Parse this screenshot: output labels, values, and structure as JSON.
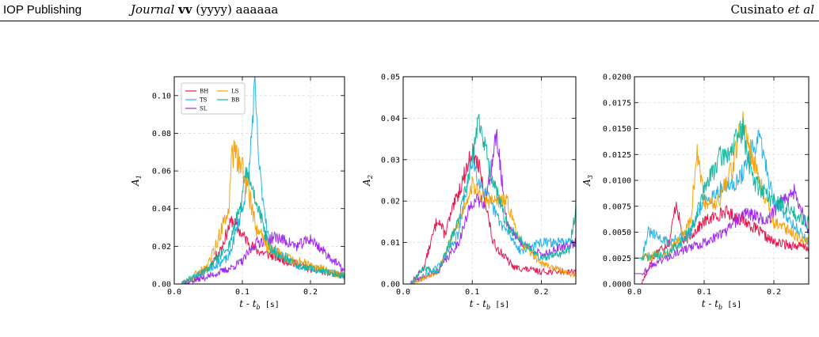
{
  "header": {
    "publisher": "IOP Publishing",
    "journal_name": "Journal",
    "journal_volume": "vv",
    "journal_year": "(yyyy)",
    "journal_article": "aaaaaa",
    "author": "Cusinato",
    "author_suffix": "et al"
  },
  "chart_data": [
    {
      "type": "line",
      "xlabel": "t - t_b [s]",
      "ylabel": "A1",
      "xlim": [
        0,
        0.25
      ],
      "ylim": [
        0,
        0.11
      ],
      "xticks": [
        "0.0",
        "0.1",
        "0.2"
      ],
      "xtick_values": [
        0,
        0.1,
        0.2
      ],
      "yticks": [
        "0.00",
        "0.02",
        "0.04",
        "0.06",
        "0.08",
        "0.10"
      ],
      "ytick_values": [
        0,
        0.02,
        0.04,
        0.06,
        0.08,
        0.1
      ],
      "grid": true,
      "legend": "top-left",
      "series": [
        {
          "name": "BH",
          "color": "#e8184f",
          "seed": 11,
          "noise": 0.004,
          "points": [
            [
              0.01,
              0
            ],
            [
              0.03,
              0.004
            ],
            [
              0.05,
              0.008
            ],
            [
              0.07,
              0.02
            ],
            [
              0.08,
              0.03
            ],
            [
              0.085,
              0.034
            ],
            [
              0.1,
              0.026
            ],
            [
              0.12,
              0.018
            ],
            [
              0.15,
              0.014
            ],
            [
              0.2,
              0.008
            ],
            [
              0.25,
              0.004
            ]
          ]
        },
        {
          "name": "TS",
          "color": "#27b3ea",
          "seed": 23,
          "noise": 0.004,
          "points": [
            [
              0.01,
              0
            ],
            [
              0.05,
              0.008
            ],
            [
              0.08,
              0.014
            ],
            [
              0.1,
              0.04
            ],
            [
              0.11,
              0.06
            ],
            [
              0.118,
              0.105
            ],
            [
              0.125,
              0.06
            ],
            [
              0.14,
              0.02
            ],
            [
              0.18,
              0.01
            ],
            [
              0.25,
              0.005
            ]
          ]
        },
        {
          "name": "SL",
          "color": "#a02bed",
          "seed": 37,
          "noise": 0.004,
          "points": [
            [
              0.01,
              0
            ],
            [
              0.05,
              0.004
            ],
            [
              0.08,
              0.008
            ],
            [
              0.1,
              0.012
            ],
            [
              0.12,
              0.022
            ],
            [
              0.15,
              0.025
            ],
            [
              0.18,
              0.02
            ],
            [
              0.2,
              0.024
            ],
            [
              0.22,
              0.017
            ],
            [
              0.25,
              0.007
            ]
          ]
        },
        {
          "name": "LS",
          "color": "#f7a30f",
          "seed": 49,
          "noise": 0.005,
          "points": [
            [
              0.01,
              0
            ],
            [
              0.05,
              0.01
            ],
            [
              0.08,
              0.04
            ],
            [
              0.085,
              0.07
            ],
            [
              0.095,
              0.065
            ],
            [
              0.105,
              0.055
            ],
            [
              0.12,
              0.03
            ],
            [
              0.14,
              0.018
            ],
            [
              0.18,
              0.012
            ],
            [
              0.25,
              0.004
            ]
          ]
        },
        {
          "name": "BB",
          "color": "#18b6a1",
          "seed": 61,
          "noise": 0.004,
          "points": [
            [
              0.01,
              0
            ],
            [
              0.05,
              0.008
            ],
            [
              0.08,
              0.02
            ],
            [
              0.1,
              0.045
            ],
            [
              0.105,
              0.06
            ],
            [
              0.12,
              0.045
            ],
            [
              0.14,
              0.018
            ],
            [
              0.18,
              0.01
            ],
            [
              0.25,
              0.004
            ]
          ]
        }
      ]
    },
    {
      "type": "line",
      "xlabel": "t - t_b [s]",
      "ylabel": "A2",
      "xlim": [
        0,
        0.25
      ],
      "ylim": [
        0,
        0.05
      ],
      "xticks": [
        "0.0",
        "0.1",
        "0.2"
      ],
      "xtick_values": [
        0,
        0.1,
        0.2
      ],
      "yticks": [
        "0.00",
        "0.01",
        "0.02",
        "0.03",
        "0.04",
        "0.05"
      ],
      "ytick_values": [
        0,
        0.01,
        0.02,
        0.03,
        0.04,
        0.05
      ],
      "grid": true,
      "series": [
        {
          "name": "BH",
          "color": "#e8184f",
          "seed": 13,
          "noise": 0.0015,
          "points": [
            [
              0.01,
              0
            ],
            [
              0.03,
              0.004
            ],
            [
              0.05,
              0.016
            ],
            [
              0.06,
              0.012
            ],
            [
              0.08,
              0.022
            ],
            [
              0.1,
              0.032
            ],
            [
              0.11,
              0.028
            ],
            [
              0.13,
              0.01
            ],
            [
              0.16,
              0.004
            ],
            [
              0.2,
              0.003
            ],
            [
              0.25,
              0.003
            ]
          ]
        },
        {
          "name": "TS",
          "color": "#27b3ea",
          "seed": 29,
          "noise": 0.0015,
          "points": [
            [
              0.01,
              0
            ],
            [
              0.05,
              0.004
            ],
            [
              0.08,
              0.012
            ],
            [
              0.1,
              0.03
            ],
            [
              0.11,
              0.025
            ],
            [
              0.14,
              0.015
            ],
            [
              0.17,
              0.008
            ],
            [
              0.2,
              0.01
            ],
            [
              0.25,
              0.01
            ]
          ]
        },
        {
          "name": "SL",
          "color": "#a02bed",
          "seed": 41,
          "noise": 0.0015,
          "points": [
            [
              0.01,
              0
            ],
            [
              0.05,
              0.003
            ],
            [
              0.08,
              0.01
            ],
            [
              0.1,
              0.02
            ],
            [
              0.12,
              0.02
            ],
            [
              0.135,
              0.036
            ],
            [
              0.15,
              0.015
            ],
            [
              0.17,
              0.01
            ],
            [
              0.2,
              0.007
            ],
            [
              0.25,
              0.01
            ]
          ]
        },
        {
          "name": "LS",
          "color": "#f7a30f",
          "seed": 53,
          "noise": 0.0015,
          "points": [
            [
              0.01,
              0
            ],
            [
              0.05,
              0.003
            ],
            [
              0.08,
              0.015
            ],
            [
              0.1,
              0.024
            ],
            [
              0.12,
              0.02
            ],
            [
              0.15,
              0.02
            ],
            [
              0.17,
              0.01
            ],
            [
              0.2,
              0.005
            ],
            [
              0.25,
              0.002
            ]
          ]
        },
        {
          "name": "BB",
          "color": "#18b6a1",
          "seed": 67,
          "noise": 0.0015,
          "points": [
            [
              0.01,
              0
            ],
            [
              0.03,
              0.004
            ],
            [
              0.05,
              0.003
            ],
            [
              0.08,
              0.015
            ],
            [
              0.1,
              0.03
            ],
            [
              0.11,
              0.04
            ],
            [
              0.125,
              0.028
            ],
            [
              0.15,
              0.014
            ],
            [
              0.2,
              0.006
            ],
            [
              0.24,
              0.008
            ],
            [
              0.25,
              0.018
            ]
          ]
        }
      ]
    },
    {
      "type": "line",
      "xlabel": "t - t_b [s]",
      "ylabel": "A3",
      "xlim": [
        0,
        0.25
      ],
      "ylim": [
        0,
        0.02
      ],
      "xticks": [
        "0.0",
        "0.1",
        "0.2"
      ],
      "xtick_values": [
        0,
        0.1,
        0.2
      ],
      "yticks": [
        "0.0000",
        "0.0025",
        "0.0050",
        "0.0075",
        "0.0100",
        "0.0125",
        "0.0150",
        "0.0175",
        "0.0200"
      ],
      "ytick_values": [
        0,
        0.0025,
        0.005,
        0.0075,
        0.01,
        0.0125,
        0.015,
        0.0175,
        0.02
      ],
      "grid": true,
      "series": [
        {
          "name": "BH",
          "color": "#e8184f",
          "seed": 17,
          "noise": 0.0006,
          "points": [
            [
              0.01,
              0
            ],
            [
              0.03,
              0.003
            ],
            [
              0.05,
              0.004
            ],
            [
              0.06,
              0.008
            ],
            [
              0.07,
              0.004
            ],
            [
              0.1,
              0.006
            ],
            [
              0.13,
              0.007
            ],
            [
              0.16,
              0.006
            ],
            [
              0.2,
              0.004
            ],
            [
              0.25,
              0.0035
            ]
          ]
        },
        {
          "name": "TS",
          "color": "#27b3ea",
          "seed": 31,
          "noise": 0.0006,
          "points": [
            [
              0.01,
              0.0025
            ],
            [
              0.02,
              0.005
            ],
            [
              0.05,
              0.004
            ],
            [
              0.08,
              0.005
            ],
            [
              0.1,
              0.008
            ],
            [
              0.12,
              0.009
            ],
            [
              0.15,
              0.01
            ],
            [
              0.17,
              0.013
            ],
            [
              0.18,
              0.014
            ],
            [
              0.2,
              0.008
            ],
            [
              0.25,
              0.004
            ]
          ]
        },
        {
          "name": "SL",
          "color": "#a02bed",
          "seed": 43,
          "noise": 0.0006,
          "points": [
            [
              0.01,
              0.001
            ],
            [
              0.03,
              0.002
            ],
            [
              0.06,
              0.003
            ],
            [
              0.1,
              0.004
            ],
            [
              0.13,
              0.005
            ],
            [
              0.16,
              0.007
            ],
            [
              0.19,
              0.006
            ],
            [
              0.21,
              0.008
            ],
            [
              0.23,
              0.009
            ],
            [
              0.25,
              0.005
            ]
          ]
        },
        {
          "name": "LS",
          "color": "#f7a30f",
          "seed": 59,
          "noise": 0.0007,
          "points": [
            [
              0.01,
              0.0025
            ],
            [
              0.05,
              0.003
            ],
            [
              0.08,
              0.006
            ],
            [
              0.09,
              0.0125
            ],
            [
              0.1,
              0.008
            ],
            [
              0.12,
              0.008
            ],
            [
              0.14,
              0.011
            ],
            [
              0.155,
              0.016
            ],
            [
              0.17,
              0.012
            ],
            [
              0.2,
              0.006
            ],
            [
              0.25,
              0.004
            ]
          ]
        },
        {
          "name": "BB",
          "color": "#18b6a1",
          "seed": 71,
          "noise": 0.0007,
          "points": [
            [
              0.01,
              0.0025
            ],
            [
              0.05,
              0.003
            ],
            [
              0.08,
              0.005
            ],
            [
              0.1,
              0.009
            ],
            [
              0.12,
              0.012
            ],
            [
              0.14,
              0.013
            ],
            [
              0.155,
              0.015
            ],
            [
              0.17,
              0.01
            ],
            [
              0.2,
              0.008
            ],
            [
              0.25,
              0.006
            ]
          ]
        }
      ]
    }
  ]
}
